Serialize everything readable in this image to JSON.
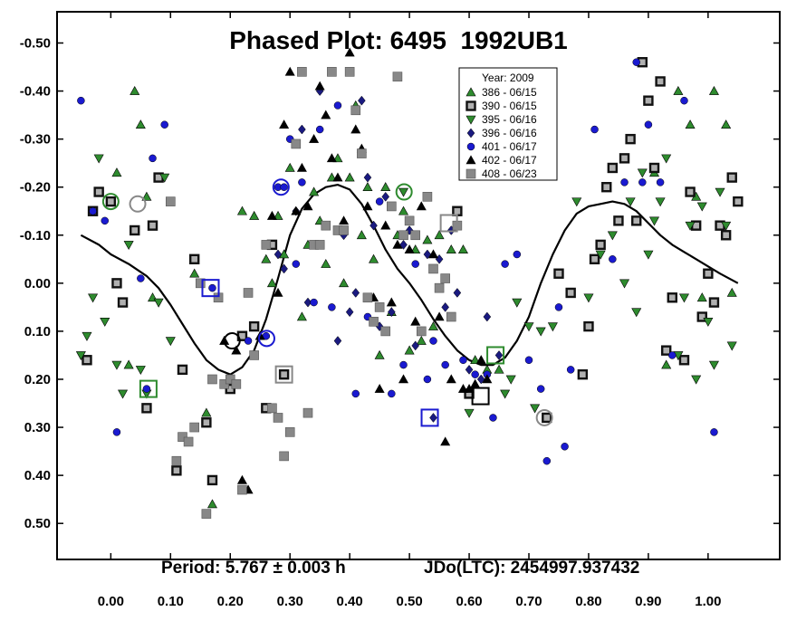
{
  "chart_data": {
    "type": "scatter",
    "title": "Phased Plot: 6495  1992UB1",
    "footer": {
      "period": "Period: 5.767 ± 0.003 h",
      "epoch": "JDo(LTC): 2454997.937432"
    },
    "xlabel": "",
    "ylabel": "",
    "xlim": [
      -0.09,
      1.12
    ],
    "ylim": [
      -0.565,
      0.575
    ],
    "y_inverted": true,
    "grid": false,
    "x_ticks": [
      "0.00",
      "0.10",
      "0.20",
      "0.30",
      "0.40",
      "0.50",
      "0.60",
      "0.70",
      "0.80",
      "0.90",
      "1.00"
    ],
    "x_tick_values": [
      0.0,
      0.1,
      0.2,
      0.3,
      0.4,
      0.5,
      0.6,
      0.7,
      0.8,
      0.9,
      1.0
    ],
    "y_ticks": [
      "-0.50",
      "-0.40",
      "-0.30",
      "-0.20",
      "-0.10",
      "0.00",
      "0.10",
      "0.20",
      "0.30",
      "0.40",
      "0.50"
    ],
    "y_tick_values": [
      -0.5,
      -0.4,
      -0.3,
      -0.2,
      -0.1,
      0.0,
      0.1,
      0.2,
      0.3,
      0.4,
      0.5
    ],
    "legend": {
      "title": "Year: 2009",
      "position": "top-right"
    },
    "series": [
      {
        "name": "386 - 06/15",
        "marker": "triangle-up",
        "color": "#2e8b2e",
        "x": [
          0.01,
          0.03,
          0.04,
          0.05,
          0.06,
          0.07,
          0.12,
          0.14,
          0.16,
          0.17,
          0.22,
          0.24,
          0.25,
          0.26,
          0.27,
          0.28,
          0.29,
          0.3,
          0.32,
          0.33,
          0.34,
          0.35,
          0.36,
          0.37,
          0.38,
          0.39,
          0.4,
          0.41,
          0.42,
          0.43,
          0.44,
          0.45,
          0.46,
          0.47,
          0.48,
          0.49,
          0.5,
          0.51,
          0.52,
          0.53,
          0.54,
          0.55,
          0.57,
          0.59,
          0.61,
          0.63,
          0.65,
          0.91,
          0.93,
          0.95,
          0.97,
          0.98,
          0.99,
          1.01,
          1.03,
          1.04
        ],
        "y": [
          -0.23,
          0.17,
          -0.4,
          -0.33,
          -0.18,
          0.03,
          0.18,
          -0.02,
          0.27,
          0.46,
          -0.15,
          -0.14,
          0.11,
          -0.05,
          0.0,
          -0.14,
          -0.06,
          -0.24,
          0.07,
          -0.08,
          -0.19,
          -0.13,
          -0.04,
          -0.22,
          -0.26,
          0.0,
          -0.22,
          -0.37,
          -0.1,
          -0.2,
          -0.05,
          0.15,
          -0.2,
          0.06,
          -0.1,
          -0.15,
          0.14,
          -0.07,
          0.12,
          -0.09,
          0.09,
          -0.1,
          -0.07,
          -0.07,
          0.16,
          0.18,
          0.18,
          -0.23,
          0.17,
          -0.4,
          -0.33,
          -0.18,
          0.03,
          -0.4,
          -0.33,
          0.02
        ]
      },
      {
        "name": "390 - 06/15",
        "marker": "square-bold",
        "color": "#404040",
        "x": [
          -0.04,
          -0.03,
          -0.02,
          0.0,
          0.01,
          0.02,
          0.04,
          0.06,
          0.07,
          0.08,
          0.11,
          0.12,
          0.14,
          0.16,
          0.17,
          0.2,
          0.22,
          0.24,
          0.26,
          0.27,
          0.29,
          0.58,
          0.6,
          0.73,
          0.75,
          0.77,
          0.79,
          0.8,
          0.81,
          0.82,
          0.83,
          0.84,
          0.85,
          0.86,
          0.87,
          0.88,
          0.89,
          0.9,
          0.91,
          0.92,
          0.93,
          0.94,
          0.96,
          0.97,
          0.98,
          0.99,
          1.0,
          1.01,
          1.02,
          1.03,
          1.04,
          1.05
        ],
        "y": [
          0.16,
          -0.15,
          -0.19,
          -0.17,
          0.0,
          0.04,
          -0.11,
          0.26,
          -0.12,
          -0.22,
          0.39,
          0.18,
          -0.05,
          0.29,
          0.41,
          0.22,
          0.11,
          0.09,
          0.26,
          -0.08,
          0.19,
          -0.15,
          0.23,
          0.28,
          -0.02,
          0.02,
          0.19,
          0.09,
          -0.05,
          -0.08,
          -0.2,
          -0.24,
          -0.13,
          -0.26,
          -0.3,
          -0.13,
          -0.46,
          -0.38,
          -0.24,
          -0.42,
          0.14,
          0.03,
          0.16,
          -0.19,
          -0.12,
          0.07,
          -0.02,
          0.04,
          -0.12,
          -0.1,
          -0.22,
          -0.17
        ]
      },
      {
        "name": "395 - 06/16",
        "marker": "triangle-down",
        "color": "#2e8b2e",
        "x": [
          -0.05,
          -0.04,
          -0.03,
          -0.02,
          -0.01,
          0.01,
          0.02,
          0.03,
          0.05,
          0.06,
          0.08,
          0.09,
          0.1,
          0.49,
          0.6,
          0.66,
          0.67,
          0.68,
          0.7,
          0.71,
          0.72,
          0.74,
          0.78,
          0.8,
          0.82,
          0.84,
          0.86,
          0.87,
          0.88,
          0.89,
          0.9,
          0.91,
          0.92,
          0.93,
          0.95,
          0.96,
          0.97,
          0.98,
          0.99,
          1.0,
          1.01,
          1.02,
          1.03,
          1.04
        ],
        "y": [
          0.15,
          0.11,
          0.03,
          -0.26,
          0.08,
          0.17,
          0.23,
          -0.08,
          0.18,
          0.23,
          0.04,
          -0.22,
          0.12,
          -0.19,
          0.27,
          0.23,
          0.2,
          0.04,
          0.09,
          0.26,
          0.1,
          0.09,
          -0.17,
          0.03,
          -0.06,
          -0.1,
          0.0,
          -0.17,
          0.06,
          -0.23,
          -0.06,
          -0.13,
          -0.17,
          -0.26,
          0.15,
          0.03,
          -0.12,
          0.2,
          -0.16,
          0.08,
          0.17,
          -0.19,
          -0.12,
          0.13
        ]
      },
      {
        "name": "396 - 06/16",
        "marker": "diamond",
        "color": "#1a1a80",
        "x": [
          0.28,
          0.29,
          0.31,
          0.32,
          0.33,
          0.35,
          0.36,
          0.38,
          0.39,
          0.4,
          0.41,
          0.42,
          0.43,
          0.44,
          0.45,
          0.46,
          0.47,
          0.49,
          0.5,
          0.51,
          0.52,
          0.53,
          0.54,
          0.55,
          0.56,
          0.57,
          0.58,
          0.6,
          0.62,
          0.63,
          0.65
        ],
        "y": [
          -0.06,
          -0.03,
          -0.15,
          -0.32,
          0.04,
          -0.4,
          -0.12,
          0.12,
          -0.1,
          0.06,
          0.02,
          -0.38,
          -0.22,
          -0.12,
          0.09,
          -0.18,
          0.06,
          -0.08,
          -0.11,
          0.13,
          0.1,
          -0.06,
          0.28,
          -0.05,
          0.05,
          -0.11,
          0.02,
          0.18,
          0.2,
          0.07,
          0.15
        ]
      },
      {
        "name": "401 - 06/17",
        "marker": "circle",
        "color": "#1a1ad0",
        "x": [
          -0.05,
          -0.03,
          -0.01,
          0.01,
          0.05,
          0.06,
          0.07,
          0.09,
          0.17,
          0.23,
          0.26,
          0.28,
          0.29,
          0.3,
          0.31,
          0.32,
          0.34,
          0.35,
          0.37,
          0.38,
          0.41,
          0.43,
          0.45,
          0.47,
          0.49,
          0.51,
          0.53,
          0.54,
          0.56,
          0.59,
          0.61,
          0.63,
          0.64,
          0.66,
          0.68,
          0.7,
          0.72,
          0.73,
          0.75,
          0.76,
          0.77,
          0.81,
          0.84,
          0.86,
          0.88,
          0.89,
          0.9,
          0.92,
          0.94,
          0.96,
          1.01
        ],
        "y": [
          -0.38,
          -0.15,
          -0.13,
          0.31,
          -0.01,
          0.22,
          -0.26,
          -0.33,
          0.01,
          0.12,
          0.11,
          -0.2,
          -0.2,
          -0.3,
          -0.04,
          -0.21,
          0.04,
          -0.32,
          0.05,
          -0.37,
          0.23,
          0.07,
          -0.17,
          0.23,
          0.17,
          -0.04,
          0.2,
          0.12,
          0.17,
          0.16,
          0.19,
          0.19,
          0.28,
          -0.04,
          -0.06,
          0.16,
          0.22,
          0.37,
          0.05,
          0.34,
          0.18,
          -0.32,
          -0.05,
          -0.21,
          -0.46,
          -0.21,
          -0.33,
          -0.21,
          0.15,
          -0.38,
          0.31
        ]
      },
      {
        "name": "402 - 06/17",
        "marker": "triangle-up",
        "color": "#000000",
        "x": [
          0.19,
          0.21,
          0.22,
          0.23,
          0.25,
          0.27,
          0.28,
          0.29,
          0.3,
          0.31,
          0.32,
          0.33,
          0.34,
          0.35,
          0.36,
          0.37,
          0.38,
          0.39,
          0.4,
          0.41,
          0.42,
          0.43,
          0.44,
          0.45,
          0.46,
          0.47,
          0.48,
          0.49,
          0.5,
          0.51,
          0.52,
          0.54,
          0.55,
          0.56,
          0.57,
          0.59,
          0.6,
          0.61,
          0.62,
          0.63
        ],
        "y": [
          0.12,
          0.14,
          0.41,
          0.43,
          0.11,
          -0.14,
          0.02,
          -0.33,
          -0.44,
          -0.15,
          -0.24,
          -0.16,
          -0.3,
          -0.41,
          -0.35,
          -0.26,
          -0.22,
          -0.13,
          -0.48,
          -0.32,
          -0.28,
          -0.16,
          0.03,
          0.22,
          -0.12,
          0.04,
          -0.08,
          0.2,
          -0.07,
          0.08,
          -0.16,
          -0.06,
          0.07,
          0.33,
          0.2,
          0.22,
          0.22,
          0.21,
          0.16,
          0.2
        ]
      },
      {
        "name": "408 - 06/23",
        "marker": "square",
        "color": "#888888",
        "x": [
          0.1,
          0.11,
          0.12,
          0.13,
          0.14,
          0.15,
          0.16,
          0.17,
          0.18,
          0.19,
          0.2,
          0.21,
          0.22,
          0.23,
          0.24,
          0.26,
          0.27,
          0.28,
          0.29,
          0.3,
          0.31,
          0.32,
          0.33,
          0.34,
          0.35,
          0.36,
          0.37,
          0.38,
          0.39,
          0.4,
          0.41,
          0.42,
          0.43,
          0.44,
          0.45,
          0.46,
          0.47,
          0.48,
          0.49,
          0.5,
          0.51,
          0.52,
          0.53,
          0.54,
          0.55,
          0.56,
          0.57,
          0.58
        ],
        "y": [
          -0.17,
          0.37,
          0.32,
          0.33,
          0.3,
          0.0,
          0.48,
          0.2,
          0.03,
          0.21,
          0.2,
          0.21,
          0.43,
          0.02,
          0.15,
          -0.08,
          0.26,
          0.28,
          0.36,
          0.31,
          -0.29,
          -0.44,
          0.27,
          -0.08,
          -0.08,
          -0.12,
          -0.44,
          -0.11,
          -0.11,
          -0.44,
          -0.36,
          -0.27,
          0.03,
          0.08,
          0.05,
          0.1,
          -0.16,
          -0.43,
          -0.1,
          -0.13,
          -0.1,
          0.1,
          -0.18,
          -0.03,
          0.01,
          -0.01,
          0.07,
          -0.12
        ]
      }
    ],
    "highlighted_points": [
      {
        "x": 0.0,
        "y": -0.17,
        "ring": "circle",
        "color": "#2e8b2e"
      },
      {
        "x": 0.045,
        "y": -0.165,
        "ring": "circle",
        "color": "#888888"
      },
      {
        "x": 0.063,
        "y": 0.22,
        "ring": "square",
        "color": "#2e8b2e"
      },
      {
        "x": 0.167,
        "y": 0.01,
        "ring": "square",
        "color": "#1a1ad0"
      },
      {
        "x": 0.203,
        "y": 0.12,
        "ring": "circle",
        "color": "#000000"
      },
      {
        "x": 0.261,
        "y": 0.115,
        "ring": "circle",
        "color": "#1a1ad0"
      },
      {
        "x": 0.285,
        "y": -0.2,
        "ring": "circle",
        "color": "#1a1ad0"
      },
      {
        "x": 0.29,
        "y": 0.19,
        "ring": "square",
        "color": "#888888"
      },
      {
        "x": 0.491,
        "y": -0.19,
        "ring": "circle",
        "color": "#2e8b2e"
      },
      {
        "x": 0.534,
        "y": 0.28,
        "ring": "square",
        "color": "#1a1ad0"
      },
      {
        "x": 0.566,
        "y": -0.125,
        "ring": "square",
        "color": "#888888"
      },
      {
        "x": 0.619,
        "y": 0.235,
        "ring": "square",
        "color": "#000000"
      },
      {
        "x": 0.644,
        "y": 0.15,
        "ring": "square",
        "color": "#2e8b2e"
      },
      {
        "x": 0.726,
        "y": 0.28,
        "ring": "circle",
        "color": "#888888"
      }
    ],
    "fit_curve": {
      "x": [
        -0.05,
        -0.02,
        0.0,
        0.03,
        0.06,
        0.08,
        0.1,
        0.12,
        0.14,
        0.16,
        0.18,
        0.2,
        0.22,
        0.24,
        0.26,
        0.28,
        0.3,
        0.32,
        0.34,
        0.36,
        0.38,
        0.4,
        0.42,
        0.44,
        0.46,
        0.48,
        0.5,
        0.52,
        0.54,
        0.56,
        0.58,
        0.6,
        0.62,
        0.64,
        0.66,
        0.68,
        0.7,
        0.72,
        0.74,
        0.76,
        0.78,
        0.8,
        0.82,
        0.84,
        0.86,
        0.88,
        0.9,
        0.92,
        0.94,
        0.96,
        0.98,
        1.0,
        1.02,
        1.05
      ],
      "y": [
        -0.1,
        -0.08,
        -0.06,
        -0.04,
        -0.015,
        0.01,
        0.045,
        0.085,
        0.125,
        0.16,
        0.18,
        0.19,
        0.175,
        0.14,
        0.075,
        -0.01,
        -0.1,
        -0.155,
        -0.185,
        -0.2,
        -0.205,
        -0.195,
        -0.165,
        -0.12,
        -0.07,
        -0.03,
        0.0,
        0.035,
        0.075,
        0.11,
        0.14,
        0.16,
        0.17,
        0.17,
        0.155,
        0.12,
        0.07,
        0.0,
        -0.06,
        -0.11,
        -0.145,
        -0.16,
        -0.165,
        -0.17,
        -0.165,
        -0.15,
        -0.125,
        -0.1,
        -0.08,
        -0.065,
        -0.05,
        -0.035,
        -0.02,
        0.0
      ]
    }
  }
}
